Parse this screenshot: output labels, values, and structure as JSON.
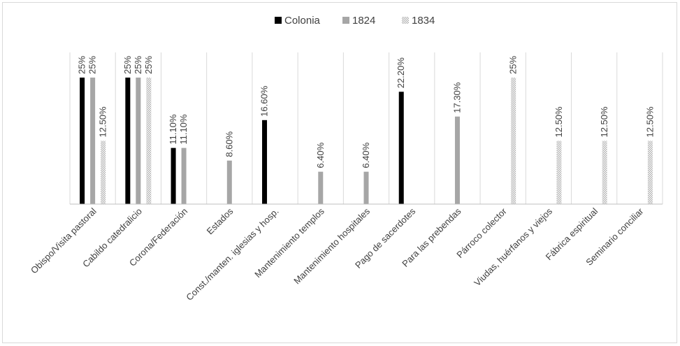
{
  "chart_data": {
    "type": "bar",
    "title": "",
    "xlabel": "",
    "ylabel": "",
    "ylim": [
      0,
      0.28
    ],
    "grid": "vertical category separators",
    "legend_position": "top",
    "categories": [
      "Obispo/Visita pastoral",
      "Cabildo catedralicio",
      "Corona/Federación",
      "Estados",
      "Const./manten. iglesias y hosp.",
      "Mantenimiento templos",
      "Mantenimiento hospitales",
      "Pago de sacerdotes",
      "Para las prebendas",
      "Párroco colector",
      "Viudas, huérfanos y viejos",
      "Fábrica espiritual",
      "Seminario conciliar"
    ],
    "series": [
      {
        "name": "Colonia",
        "color": "#000000",
        "pattern": "solid",
        "values": [
          0.25,
          0.25,
          0.111,
          null,
          0.166,
          null,
          null,
          0.222,
          null,
          null,
          null,
          null,
          null
        ],
        "labels": [
          "25%",
          "25%",
          "11.10%",
          "",
          "16.60%",
          "",
          "",
          "22.20%",
          "",
          "",
          "",
          "",
          ""
        ]
      },
      {
        "name": "1824",
        "color": "#a6a6a6",
        "pattern": "solid",
        "values": [
          0.25,
          0.25,
          0.111,
          0.086,
          null,
          0.064,
          0.064,
          null,
          0.173,
          null,
          null,
          null,
          null
        ],
        "labels": [
          "25%",
          "25%",
          "11.10%",
          "8.60%",
          "",
          "6.40%",
          "6.40%",
          "",
          "17.30%",
          "",
          "",
          "",
          ""
        ]
      },
      {
        "name": "1834",
        "color": "#bfbfbf",
        "pattern": "dotted",
        "values": [
          0.125,
          0.25,
          null,
          null,
          null,
          null,
          null,
          null,
          null,
          0.25,
          0.125,
          0.125,
          0.125
        ],
        "labels": [
          "12.50%",
          "25%",
          "",
          "",
          "",
          "",
          "",
          "",
          "",
          "25%",
          "12.50%",
          "12.50%",
          "12.50%"
        ]
      }
    ]
  }
}
